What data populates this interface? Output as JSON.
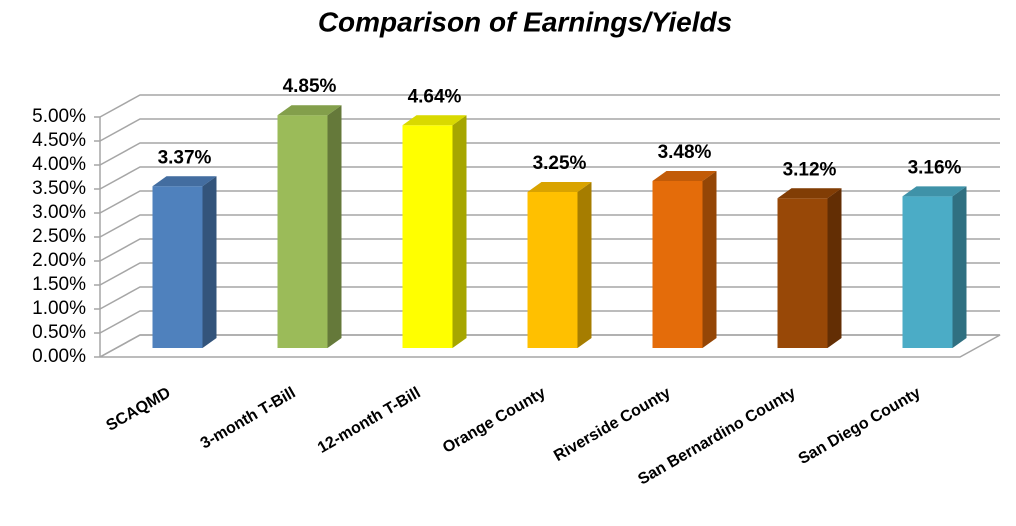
{
  "chart_data": {
    "type": "bar3d",
    "title": "Comparison of Earnings/Yields",
    "categories": [
      "SCAQMD",
      "3-month T-Bill",
      "12-month T-Bill",
      "Orange County",
      "Riverside County",
      "San Bernardino County",
      "San Diego County"
    ],
    "values": [
      3.37,
      4.85,
      4.64,
      3.25,
      3.48,
      3.12,
      3.16
    ],
    "value_labels": [
      "3.37%",
      "4.85%",
      "4.64%",
      "3.25%",
      "3.48%",
      "3.12%",
      "3.16%"
    ],
    "colors": [
      "#4f81bd",
      "#9bbb59",
      "#ffff00",
      "#ffc000",
      "#e46c0a",
      "#984807",
      "#4bacc6"
    ],
    "ylim": [
      0,
      5
    ],
    "yticks": [
      {
        "value": 0,
        "label": "0.00%"
      },
      {
        "value": 0.5,
        "label": "0.50%"
      },
      {
        "value": 1,
        "label": "1.00%"
      },
      {
        "value": 1.5,
        "label": "1.50%"
      },
      {
        "value": 2,
        "label": "2.00%"
      },
      {
        "value": 2.5,
        "label": "2.50%"
      },
      {
        "value": 3,
        "label": "3.00%"
      },
      {
        "value": 3.5,
        "label": "3.50%"
      },
      {
        "value": 4,
        "label": "4.00%"
      },
      {
        "value": 4.5,
        "label": "4.50%"
      },
      {
        "value": 5,
        "label": "5.00%"
      }
    ],
    "grid": true
  }
}
